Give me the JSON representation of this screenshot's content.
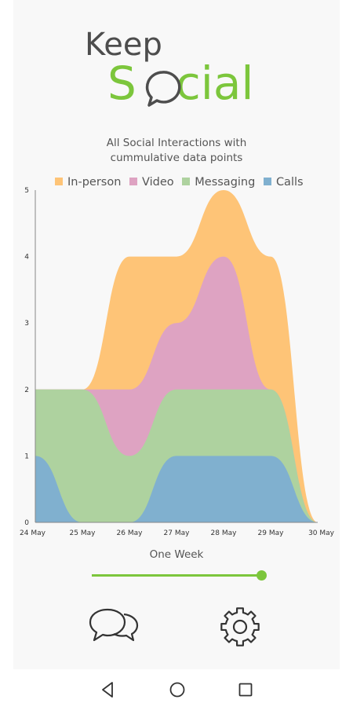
{
  "logo": {
    "line1": "Keep",
    "line2_start": "S",
    "line2_end": "cial"
  },
  "chart_data": {
    "type": "area",
    "stacked": true,
    "title_line1": "All Social Interactions with",
    "title_line2": "cummulative data points",
    "x": [
      "24 May",
      "25 May",
      "26 May",
      "27 May",
      "28 May",
      "29 May",
      "30 May"
    ],
    "ylim": [
      0,
      5
    ],
    "yticks": [
      0,
      1,
      2,
      3,
      4,
      5
    ],
    "legend_placement": "top",
    "grid": false,
    "series": [
      {
        "name": "In-person",
        "color": "#fec477",
        "values": [
          0,
          0,
          2,
          1,
          1,
          2,
          0
        ]
      },
      {
        "name": "Video",
        "color": "#dea3c2",
        "values": [
          0,
          0,
          1,
          1,
          2,
          0,
          0
        ]
      },
      {
        "name": "Messaging",
        "color": "#aed29f",
        "values": [
          1,
          2,
          1,
          1,
          1,
          1,
          0
        ]
      },
      {
        "name": "Calls",
        "color": "#80b0cf",
        "values": [
          1,
          0,
          0,
          1,
          1,
          1,
          0
        ]
      }
    ]
  },
  "range": {
    "label": "One Week",
    "position": 1.0
  },
  "nav": {
    "chat_icon": "chat-bubbles-icon",
    "settings_icon": "gear-icon"
  }
}
